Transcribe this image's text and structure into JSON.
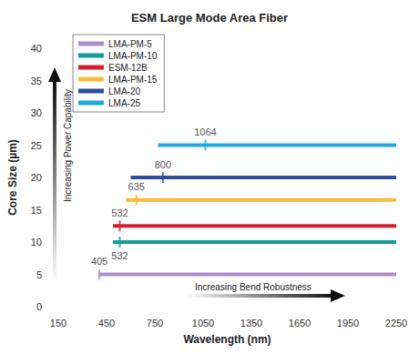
{
  "chart_data": {
    "type": "line",
    "title": "ESM Large Mode Area Fiber",
    "x_label": "Wavelength (nm)",
    "y_label": "Core Size (µm)",
    "xlim": [
      150,
      2250
    ],
    "xticks": [
      150,
      450,
      750,
      1050,
      1350,
      1650,
      1950,
      2250
    ],
    "ylim": [
      0,
      40
    ],
    "yticks": [
      0,
      5,
      10,
      15,
      20,
      25,
      30,
      35,
      40
    ],
    "grid": false,
    "legend": "upper left",
    "annotations": [
      "Increasing Power Capability",
      "Increasing Bend Robustness"
    ],
    "series": [
      {
        "name": "LMA-PM-5",
        "color": "#b08ccc",
        "x": [
          400,
          2250
        ],
        "values": [
          5,
          5
        ],
        "marker_x": 405
      },
      {
        "name": "LMA-PM-10",
        "color": "#169c98",
        "x": [
          490,
          2250
        ],
        "values": [
          10,
          10
        ],
        "marker_x": 532
      },
      {
        "name": "ESM-12B",
        "color": "#d4202c",
        "x": [
          490,
          2250
        ],
        "values": [
          12.5,
          12.5
        ],
        "marker_x": 532
      },
      {
        "name": "LMA-PM-15",
        "color": "#f6bd3a",
        "x": [
          570,
          2250
        ],
        "values": [
          16.5,
          16.5
        ],
        "marker_x": 635
      },
      {
        "name": "LMA-20",
        "color": "#2c4f9e",
        "x": [
          600,
          2250
        ],
        "values": [
          20,
          20
        ],
        "marker_x": 800
      },
      {
        "name": "LMA-25",
        "color": "#20a8db",
        "x": [
          770,
          2250
        ],
        "values": [
          25,
          25
        ],
        "marker_x": 1064
      }
    ]
  }
}
